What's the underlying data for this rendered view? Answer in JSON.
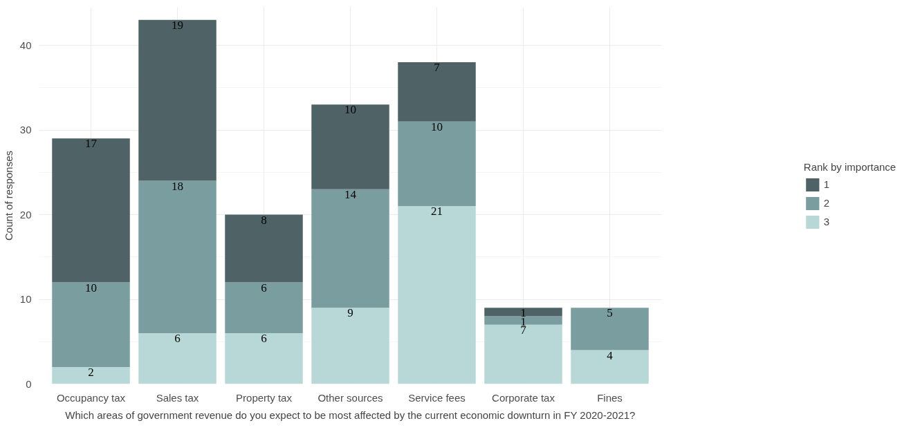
{
  "chart_data": {
    "type": "bar",
    "stacked": true,
    "xlabel": "Which areas of government revenue do you expect to be most affected by the current economic downturn in FY 2020-2021?",
    "ylabel": "Count of responses",
    "legend_title": "Rank by importance",
    "legend": "right",
    "grid": true,
    "data_labels": true,
    "categories": [
      "Occupancy tax",
      "Sales tax",
      "Property tax",
      "Other sources",
      "Service fees",
      "Corporate tax",
      "Fines"
    ],
    "ylim": [
      0,
      44.5
    ],
    "yticks": [
      0,
      10,
      20,
      30,
      40
    ],
    "series": [
      {
        "name": "3",
        "color": "#b8d8d8",
        "values": [
          2,
          6,
          6,
          9,
          21,
          7,
          4
        ]
      },
      {
        "name": "2",
        "color": "#7a9e9f",
        "values": [
          10,
          18,
          6,
          14,
          10,
          1,
          5
        ]
      },
      {
        "name": "1",
        "color": "#4f6367",
        "values": [
          17,
          19,
          8,
          10,
          7,
          1,
          null
        ]
      }
    ]
  }
}
